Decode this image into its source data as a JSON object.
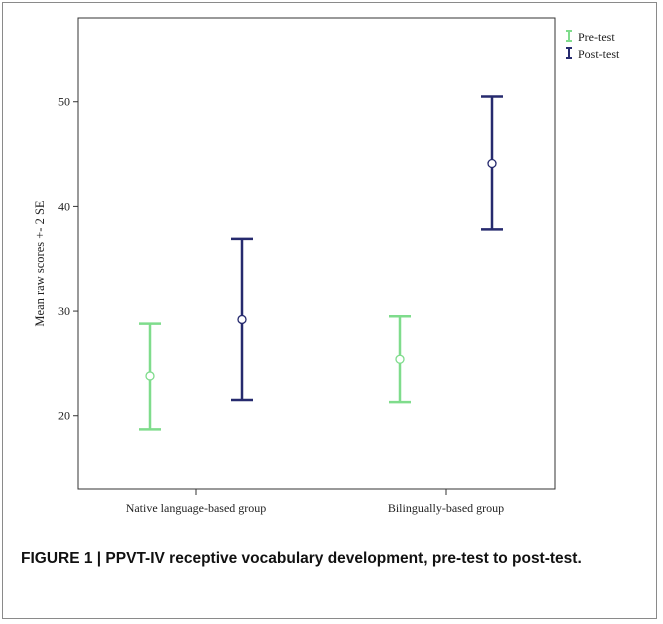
{
  "chart_data": {
    "type": "errorbar",
    "categories": [
      "Native language-based group",
      "Bilingually-based group"
    ],
    "ylabel": "Mean raw scores +- 2 SE",
    "xlabel": "",
    "ylim": [
      13,
      58
    ],
    "yticks": [
      20,
      30,
      40,
      50
    ],
    "grid": false,
    "legend_position": "top-right, outside plot",
    "series": [
      {
        "name": "Pre-test",
        "color": "#7fdc8c",
        "points": [
          {
            "category": "Native language-based group",
            "mean": 23.8,
            "lower": 18.7,
            "upper": 28.8
          },
          {
            "category": "Bilingually-based group",
            "mean": 25.4,
            "lower": 21.3,
            "upper": 29.5
          }
        ]
      },
      {
        "name": "Post-test",
        "color": "#262a6e",
        "points": [
          {
            "category": "Native language-based group",
            "mean": 29.2,
            "lower": 21.5,
            "upper": 36.9
          },
          {
            "category": "Bilingually-based group",
            "mean": 44.1,
            "lower": 37.8,
            "upper": 50.5
          }
        ]
      }
    ]
  },
  "caption": "FIGURE 1 | PPVT-IV receptive vocabulary development, pre-test to post-test."
}
